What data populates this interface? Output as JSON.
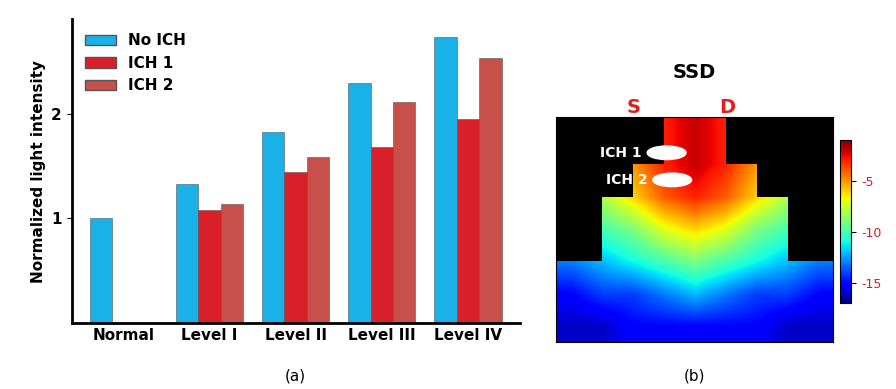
{
  "chart_data": {
    "type": "bar",
    "subtitle": "(a)",
    "y_label": "Normalized light intensity",
    "categories": [
      "Normal",
      "Level I",
      "Level II",
      "Level III",
      "Level IV"
    ],
    "series": [
      {
        "name": "No ICH",
        "color": "#1ab0e8",
        "values": [
          1.0,
          1.33,
          1.82,
          2.29,
          2.73
        ]
      },
      {
        "name": "ICH 1",
        "color": "#d9202a",
        "values": [
          null,
          1.08,
          1.44,
          1.68,
          1.95
        ]
      },
      {
        "name": "ICH 2",
        "color": "#c8504a",
        "values": [
          null,
          1.14,
          1.59,
          2.11,
          2.53
        ]
      }
    ],
    "ylim": [
      0,
      2.9
    ],
    "yticks": [
      1,
      2
    ],
    "legend": "upper left"
  },
  "image_panel": {
    "title": "SSD",
    "subtitle": "(b)",
    "source_label": "S",
    "detector_label": "D",
    "regions": [
      "ICH 1",
      "ICH 2"
    ],
    "colorbar_range": [
      -17,
      -1
    ],
    "colorbar_ticks": [
      -5,
      -10,
      -15
    ],
    "cells": [
      [
        null,
        null,
        null,
        -3,
        -2,
        -3,
        null,
        null,
        null
      ],
      [
        null,
        null,
        -5,
        -3,
        -2,
        -3,
        -5,
        null,
        null
      ],
      [
        null,
        -8,
        -6,
        -4,
        -3,
        -4,
        -6,
        -8,
        null
      ],
      [
        null,
        -10,
        -9,
        -7,
        -6,
        -7,
        -9,
        -10,
        null
      ],
      [
        -13,
        -12,
        -11,
        -10,
        -9,
        -10,
        -11,
        -12,
        -13
      ],
      [
        -15,
        -14,
        -14,
        -13,
        -12,
        -13,
        -14,
        -14,
        -15
      ],
      [
        -16,
        -16,
        -15,
        -15,
        -15,
        -15,
        -15,
        -16,
        -16
      ]
    ]
  }
}
